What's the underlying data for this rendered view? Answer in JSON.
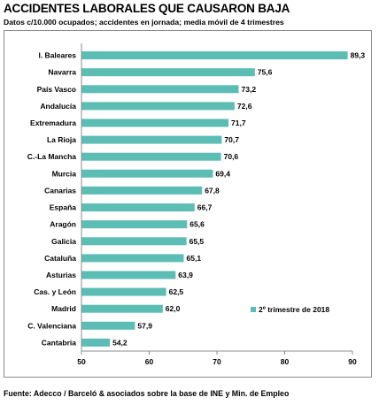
{
  "title": "ACCIDENTES LABORALES QUE CAUSARON BAJA",
  "subtitle": "Datos c/10.000 ocupados; accidentes en jornada; media móvil de 4 trimestres",
  "source": "Fuente: Adecco / Barceló & asociados sobre la base de INE y Min. de Empleo",
  "colors": {
    "bar": "#5bbdb3",
    "axis": "#8c8c8c"
  },
  "chart_data": {
    "type": "bar",
    "orientation": "horizontal",
    "categories": [
      "I. Baleares",
      "Navarra",
      "País Vasco",
      "Andalucía",
      "Extremadura",
      "La Rioja",
      "C.-La Mancha",
      "Murcia",
      "Canarias",
      "España",
      "Aragón",
      "Galicia",
      "Cataluña",
      "Asturias",
      "Cas. y León",
      "Madrid",
      "C. Valenciana",
      "Cantabria"
    ],
    "values": [
      89.3,
      75.6,
      73.2,
      72.6,
      71.7,
      70.7,
      70.6,
      69.4,
      67.8,
      66.7,
      65.6,
      65.5,
      65.1,
      63.9,
      62.5,
      62.0,
      57.9,
      54.2
    ],
    "value_labels": [
      "89,3",
      "75,6",
      "73,2",
      "72,6",
      "71,7",
      "70,7",
      "70,6",
      "69,4",
      "67,8",
      "66,7",
      "65,6",
      "65,5",
      "65,1",
      "63,9",
      "62,5",
      "62,0",
      "57,9",
      "54,2"
    ],
    "series_name": "2º trimestre de 2018",
    "xlim": [
      50,
      90
    ],
    "xticks": [
      50,
      60,
      70,
      80,
      90
    ],
    "grid": false,
    "legend": "bottom-right"
  }
}
